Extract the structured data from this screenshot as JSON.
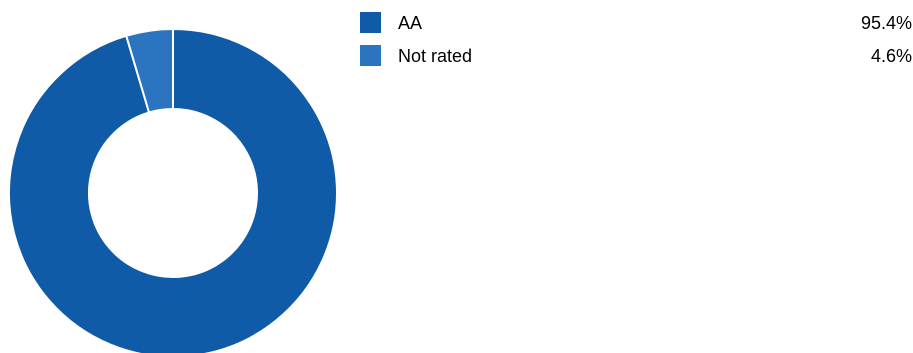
{
  "chart_data": {
    "type": "pie",
    "variant": "donut",
    "title": "",
    "categories": [
      "AA",
      "Not rated"
    ],
    "values": [
      95.4,
      4.6
    ],
    "value_labels": [
      "95.4%",
      "4.6%"
    ],
    "colors": [
      "#0f5ba8",
      "#2b74c0"
    ],
    "legend_position": "right"
  }
}
